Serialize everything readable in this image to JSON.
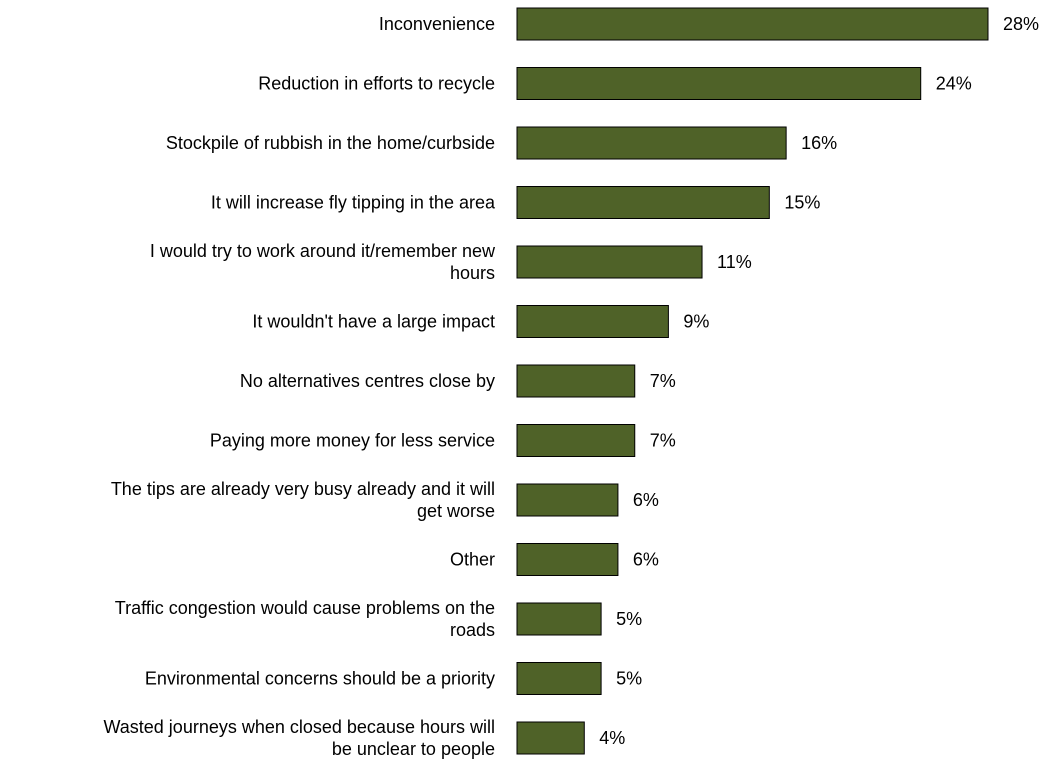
{
  "chart_data": {
    "type": "bar",
    "orientation": "horizontal",
    "categories": [
      "Inconvenience",
      "Reduction in efforts to recycle",
      "Stockpile of rubbish in the home/curbside",
      "It will increase fly tipping in the area",
      "I would try to work around it/remember new hours",
      "It wouldn't have a large impact",
      "No alternatives centres close by",
      "Paying more money for less service",
      "The tips are already very busy already and it will get worse",
      "Other",
      "Traffic congestion would cause problems on the roads",
      "Environmental concerns should be a priority",
      "Wasted journeys when closed because hours will be unclear to people"
    ],
    "label_lines": [
      [
        "Inconvenience"
      ],
      [
        "Reduction in efforts to recycle"
      ],
      [
        "Stockpile of rubbish in the home/curbside"
      ],
      [
        "It will increase fly tipping in the area"
      ],
      [
        "I would try to work around it/remember new",
        "hours"
      ],
      [
        "It wouldn't have a large impact"
      ],
      [
        "No alternatives centres close by"
      ],
      [
        "Paying more money for less service"
      ],
      [
        "The tips are already very busy already and it will",
        "get worse"
      ],
      [
        "Other"
      ],
      [
        "Traffic congestion would cause problems on the",
        "roads"
      ],
      [
        "Environmental concerns should be a priority"
      ],
      [
        "Wasted journeys when closed because hours will",
        "be unclear to people"
      ]
    ],
    "values": [
      28,
      24,
      16,
      15,
      11,
      9,
      7,
      7,
      6,
      6,
      5,
      5,
      4
    ],
    "value_labels": [
      "28%",
      "24%",
      "16%",
      "15%",
      "11%",
      "9%",
      "7%",
      "7%",
      "6%",
      "6%",
      "5%",
      "5%",
      "4%"
    ],
    "unit": "%",
    "xlim": [
      0,
      28
    ],
    "grid": false,
    "legend": "none",
    "colors": {
      "bar": "#4f6228",
      "bar_border": "#000000",
      "text": "#000000"
    }
  }
}
